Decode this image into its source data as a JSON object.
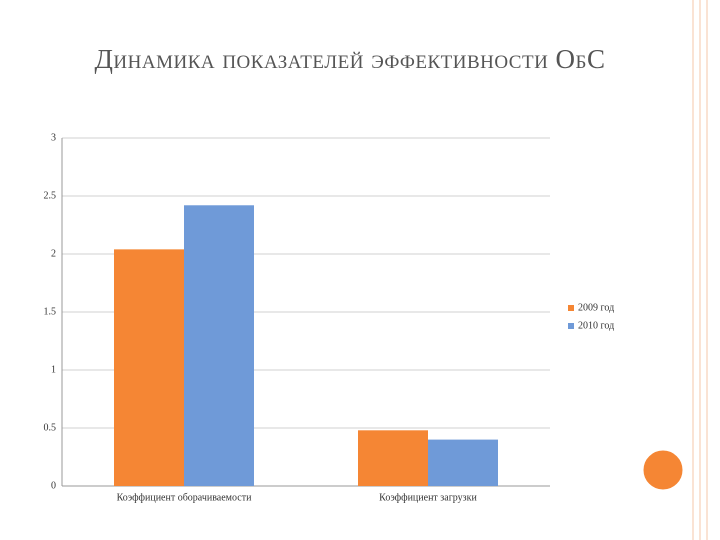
{
  "chart_data": {
    "type": "bar",
    "title": "Динамика показателей эффективности ОбС",
    "categories": [
      "Коэффициент оборачиваемости",
      "Коэффициент загрузки"
    ],
    "series": [
      {
        "name": "2009 год",
        "color": "#f58634",
        "values": [
          2.04,
          0.48
        ]
      },
      {
        "name": "2010 год",
        "color": "#6f9ad8",
        "values": [
          2.42,
          0.4
        ]
      }
    ],
    "ylim": [
      0,
      3
    ],
    "yticks": [
      0,
      0.5,
      1,
      1.5,
      2,
      2.5,
      3
    ],
    "grid": true,
    "legend": "right"
  }
}
